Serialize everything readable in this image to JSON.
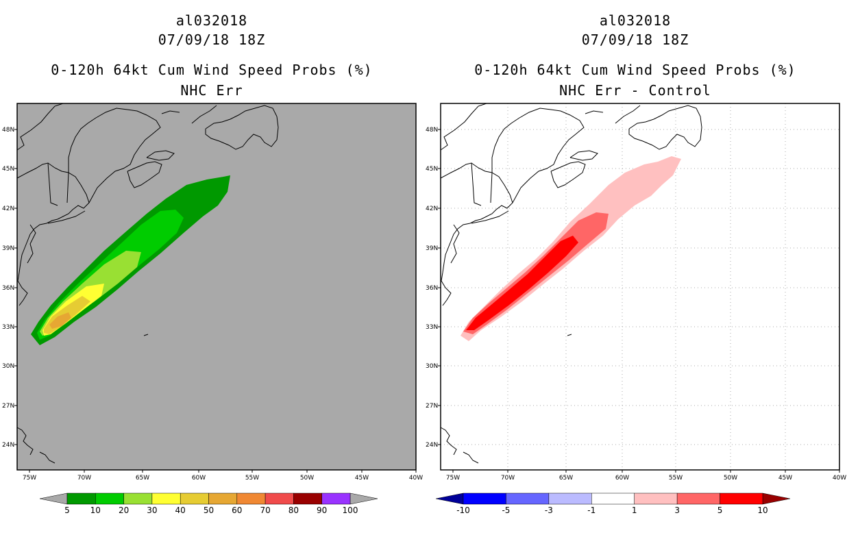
{
  "panels": [
    {
      "id": "left",
      "storm_id": "al032018",
      "datetime": "07/09/18 18Z",
      "product": "0-120h 64kt Cum Wind Speed Probs (%)",
      "subtitle": "NHC Err",
      "background": "#a9a9a9",
      "grid_lines": false,
      "colorbar": {
        "labels": [
          "5",
          "10",
          "20",
          "30",
          "40",
          "50",
          "60",
          "70",
          "80",
          "90",
          "100"
        ],
        "colors": [
          "#009900",
          "#00cc00",
          "#99e033",
          "#ffff33",
          "#e6cc33",
          "#e6a733",
          "#f08833",
          "#f04b4b",
          "#990000",
          "#9933ff"
        ],
        "extend_low": "#a9a9a9",
        "extend_high": "#a9a9a9"
      }
    },
    {
      "id": "right",
      "storm_id": "al032018",
      "datetime": "07/09/18 18Z",
      "product": "0-120h 64kt Cum Wind Speed Probs (%)",
      "subtitle": "NHC Err - Control",
      "background": "#ffffff",
      "grid_lines": true,
      "colorbar": {
        "labels": [
          "-10",
          "-5",
          "-3",
          "-1",
          "1",
          "3",
          "5",
          "10"
        ],
        "colors": [
          "#0000ff",
          "#6666ff",
          "#bbbbff",
          "#ffffff",
          "#ffc0c0",
          "#ff6666",
          "#ff0000"
        ],
        "extend_low": "#000099",
        "extend_high": "#990000"
      }
    }
  ],
  "axes": {
    "lon_labels": [
      "75W",
      "70W",
      "65W",
      "60W",
      "55W",
      "50W",
      "45W",
      "40W"
    ],
    "lat_labels": [
      "48N",
      "45N",
      "42N",
      "39N",
      "36N",
      "33N",
      "30N",
      "27N",
      "24N"
    ]
  }
}
